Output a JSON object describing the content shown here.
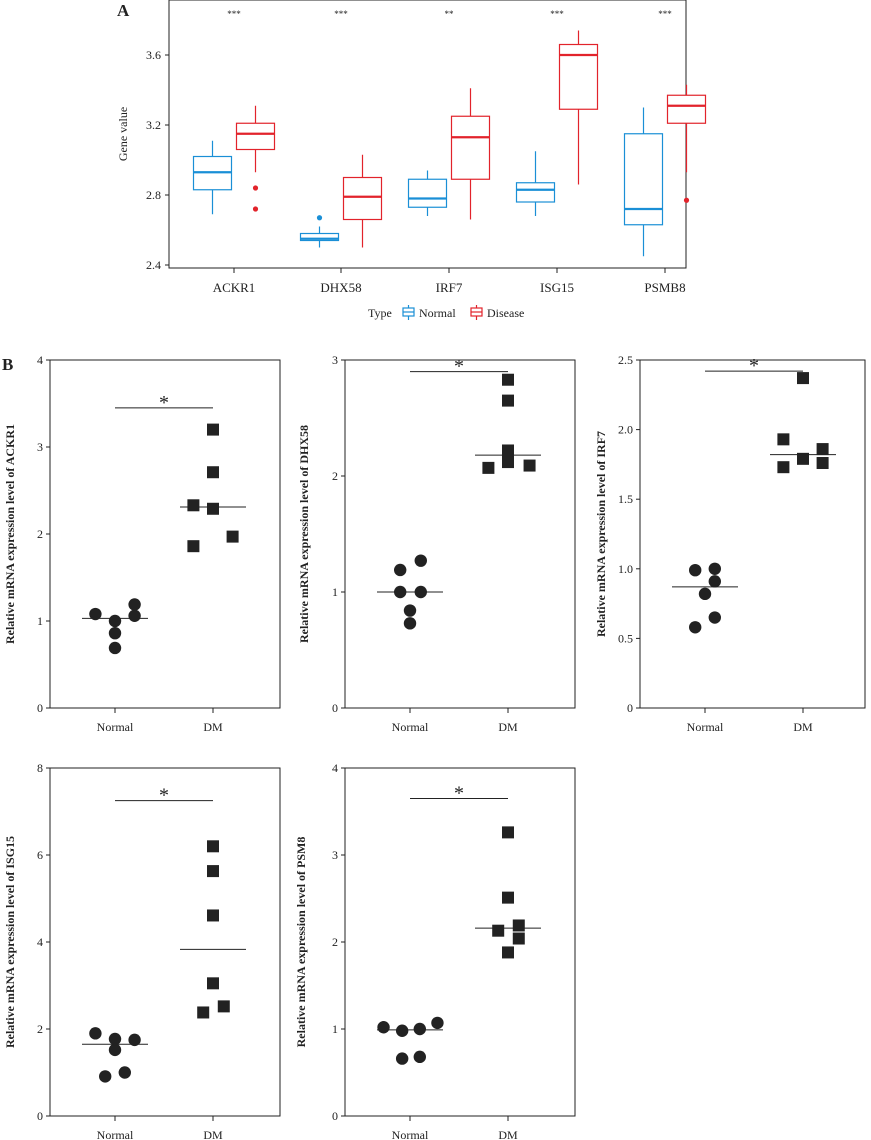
{
  "panelA": {
    "letter": "A",
    "legend_title": "Type",
    "colors": {
      "Normal": "#1a8fd6",
      "Disease": "#e2232b"
    },
    "chart_data": {
      "type": "box",
      "title": "",
      "xlabel": "",
      "ylabel": "Gene value",
      "ylim": [
        2.4,
        3.87
      ],
      "yticks": [
        2.4,
        2.8,
        3.2,
        3.6
      ],
      "ytick_labels": [
        "2.4",
        "2.8",
        "3.2",
        "3.6"
      ],
      "categories": [
        "ACKR1",
        "DHX58",
        "IRF7",
        "ISG15",
        "PSMB8"
      ],
      "significance": [
        "***",
        "***",
        "**",
        "***",
        "***"
      ],
      "legend": {
        "position": "bottom",
        "entries": [
          "Normal",
          "Disease"
        ]
      },
      "series": [
        {
          "name": "Normal",
          "boxes": [
            {
              "whisker_low": 2.69,
              "q1": 2.83,
              "median": 2.93,
              "q3": 3.02,
              "whisker_high": 3.11,
              "outliers": []
            },
            {
              "whisker_low": 2.5,
              "q1": 2.54,
              "median": 2.55,
              "q3": 2.58,
              "whisker_high": 2.62,
              "outliers": [
                2.67
              ]
            },
            {
              "whisker_low": 2.68,
              "q1": 2.73,
              "median": 2.78,
              "q3": 2.89,
              "whisker_high": 2.94,
              "outliers": []
            },
            {
              "whisker_low": 2.68,
              "q1": 2.76,
              "median": 2.83,
              "q3": 2.87,
              "whisker_high": 3.05,
              "outliers": []
            },
            {
              "whisker_low": 2.45,
              "q1": 2.63,
              "median": 2.72,
              "q3": 3.15,
              "whisker_high": 3.3,
              "outliers": []
            }
          ]
        },
        {
          "name": "Disease",
          "boxes": [
            {
              "whisker_low": 2.93,
              "q1": 3.06,
              "median": 3.15,
              "q3": 3.21,
              "whisker_high": 3.31,
              "outliers": [
                2.84,
                2.72
              ]
            },
            {
              "whisker_low": 2.5,
              "q1": 2.66,
              "median": 2.79,
              "q3": 2.9,
              "whisker_high": 3.03,
              "outliers": []
            },
            {
              "whisker_low": 2.66,
              "q1": 2.89,
              "median": 3.13,
              "q3": 3.25,
              "whisker_high": 3.41,
              "outliers": []
            },
            {
              "whisker_low": 2.86,
              "q1": 3.29,
              "median": 3.6,
              "q3": 3.66,
              "whisker_high": 3.74,
              "outliers": []
            },
            {
              "whisker_low": 2.93,
              "q1": 3.21,
              "median": 3.31,
              "q3": 3.37,
              "whisker_high": 3.43,
              "outliers": [
                2.77
              ]
            }
          ]
        }
      ]
    }
  },
  "panelB": {
    "letter": "B",
    "chart_data": [
      {
        "type": "scatter",
        "gene": "ACKR1",
        "ylabel": "Relative mRNA expression level of ACKR1",
        "categories": [
          "Normal",
          "DM"
        ],
        "ylim": [
          0,
          4
        ],
        "yticks": [
          0,
          1,
          2,
          3,
          4
        ],
        "ytick_labels": [
          "0",
          "1",
          "2",
          "3",
          "4"
        ],
        "significance": "*",
        "sig_level": 3.45,
        "groups": [
          {
            "name": "Normal",
            "marker": "circle",
            "mean": 1.03,
            "points": [
              {
                "dx": -0.2,
                "y": 1.08
              },
              {
                "dx": 0,
                "y": 1.0
              },
              {
                "dx": 0,
                "y": 0.86
              },
              {
                "dx": 0,
                "y": 0.69
              },
              {
                "dx": 0.2,
                "y": 1.19
              },
              {
                "dx": 0.2,
                "y": 1.06
              }
            ]
          },
          {
            "name": "DM",
            "marker": "square",
            "mean": 2.31,
            "points": [
              {
                "dx": 0,
                "y": 3.2
              },
              {
                "dx": 0,
                "y": 2.71
              },
              {
                "dx": -0.2,
                "y": 2.33
              },
              {
                "dx": 0,
                "y": 2.29
              },
              {
                "dx": 0.2,
                "y": 1.97
              },
              {
                "dx": -0.2,
                "y": 1.86
              }
            ]
          }
        ]
      },
      {
        "type": "scatter",
        "gene": "DHX58",
        "ylabel": "Relative mRNA expression level of DHX58",
        "categories": [
          "Normal",
          "DM"
        ],
        "ylim": [
          0,
          3
        ],
        "yticks": [
          0,
          1,
          2,
          3
        ],
        "ytick_labels": [
          "0",
          "1",
          "2",
          "3"
        ],
        "significance": "*",
        "sig_level": 2.9,
        "groups": [
          {
            "name": "Normal",
            "marker": "circle",
            "mean": 1.0,
            "points": [
              {
                "dx": -0.1,
                "y": 1.19
              },
              {
                "dx": 0.11,
                "y": 1.27
              },
              {
                "dx": -0.1,
                "y": 1.0
              },
              {
                "dx": 0.11,
                "y": 1.0
              },
              {
                "dx": 0,
                "y": 0.84
              },
              {
                "dx": 0,
                "y": 0.73
              }
            ]
          },
          {
            "name": "DM",
            "marker": "square",
            "mean": 2.18,
            "points": [
              {
                "dx": 0,
                "y": 2.83
              },
              {
                "dx": 0,
                "y": 2.65
              },
              {
                "dx": 0,
                "y": 2.22
              },
              {
                "dx": 0,
                "y": 2.12
              },
              {
                "dx": -0.2,
                "y": 2.07
              },
              {
                "dx": 0.22,
                "y": 2.09
              }
            ]
          }
        ]
      },
      {
        "type": "scatter",
        "gene": "IRF7",
        "ylabel": "Relative mRNA expression level of IRF7",
        "categories": [
          "Normal",
          "DM"
        ],
        "ylim": [
          0,
          2.5
        ],
        "yticks": [
          0,
          0.5,
          1.0,
          1.5,
          2.0,
          2.5
        ],
        "ytick_labels": [
          "0",
          "0.5",
          "1.0",
          "1.5",
          "2.0",
          "2.5"
        ],
        "significance": "*",
        "sig_level": 2.42,
        "groups": [
          {
            "name": "Normal",
            "marker": "circle",
            "mean": 0.87,
            "points": [
              {
                "dx": -0.1,
                "y": 0.99
              },
              {
                "dx": 0.1,
                "y": 1.0
              },
              {
                "dx": 0.1,
                "y": 0.91
              },
              {
                "dx": 0,
                "y": 0.82
              },
              {
                "dx": 0.1,
                "y": 0.65
              },
              {
                "dx": -0.1,
                "y": 0.58
              }
            ]
          },
          {
            "name": "DM",
            "marker": "square",
            "mean": 1.82,
            "points": [
              {
                "dx": 0,
                "y": 2.37
              },
              {
                "dx": -0.2,
                "y": 1.93
              },
              {
                "dx": 0.2,
                "y": 1.86
              },
              {
                "dx": 0,
                "y": 1.79
              },
              {
                "dx": 0.2,
                "y": 1.76
              },
              {
                "dx": -0.2,
                "y": 1.73
              }
            ]
          }
        ]
      },
      {
        "type": "scatter",
        "gene": "ISG15",
        "ylabel": "Relative mRNA expression level of ISG15",
        "categories": [
          "Normal",
          "DM"
        ],
        "ylim": [
          0,
          8
        ],
        "yticks": [
          0,
          2,
          4,
          6,
          8
        ],
        "ytick_labels": [
          "0",
          "2",
          "4",
          "6",
          "8"
        ],
        "significance": "*",
        "sig_level": 7.25,
        "groups": [
          {
            "name": "Normal",
            "marker": "circle",
            "mean": 1.65,
            "points": [
              {
                "dx": -0.2,
                "y": 1.9
              },
              {
                "dx": 0,
                "y": 1.77
              },
              {
                "dx": 0.2,
                "y": 1.75
              },
              {
                "dx": 0,
                "y": 1.52
              },
              {
                "dx": 0.1,
                "y": 1.0
              },
              {
                "dx": -0.1,
                "y": 0.91
              }
            ]
          },
          {
            "name": "DM",
            "marker": "square",
            "mean": 3.83,
            "points": [
              {
                "dx": 0,
                "y": 6.2
              },
              {
                "dx": 0,
                "y": 5.63
              },
              {
                "dx": 0,
                "y": 4.61
              },
              {
                "dx": 0,
                "y": 3.05
              },
              {
                "dx": 0.11,
                "y": 2.52
              },
              {
                "dx": -0.1,
                "y": 2.38
              }
            ]
          }
        ]
      },
      {
        "type": "scatter",
        "gene": "PSM8",
        "ylabel": "Relative mRNA expression level of PSM8",
        "categories": [
          "Normal",
          "DM"
        ],
        "ylim": [
          0,
          4
        ],
        "yticks": [
          0,
          1,
          2,
          3,
          4
        ],
        "ytick_labels": [
          "0",
          "1",
          "2",
          "3",
          "4"
        ],
        "significance": "*",
        "sig_level": 3.65,
        "groups": [
          {
            "name": "Normal",
            "marker": "circle",
            "mean": 0.99,
            "points": [
              {
                "dx": -0.27,
                "y": 1.02
              },
              {
                "dx": -0.08,
                "y": 0.98
              },
              {
                "dx": 0.1,
                "y": 1.0
              },
              {
                "dx": 0.28,
                "y": 1.07
              },
              {
                "dx": -0.08,
                "y": 0.66
              },
              {
                "dx": 0.1,
                "y": 0.68
              }
            ]
          },
          {
            "name": "DM",
            "marker": "square",
            "mean": 2.16,
            "points": [
              {
                "dx": 0,
                "y": 3.26
              },
              {
                "dx": 0,
                "y": 2.51
              },
              {
                "dx": -0.1,
                "y": 2.13
              },
              {
                "dx": 0.11,
                "y": 2.19
              },
              {
                "dx": 0.11,
                "y": 2.04
              },
              {
                "dx": 0,
                "y": 1.88
              }
            ]
          }
        ]
      }
    ]
  }
}
